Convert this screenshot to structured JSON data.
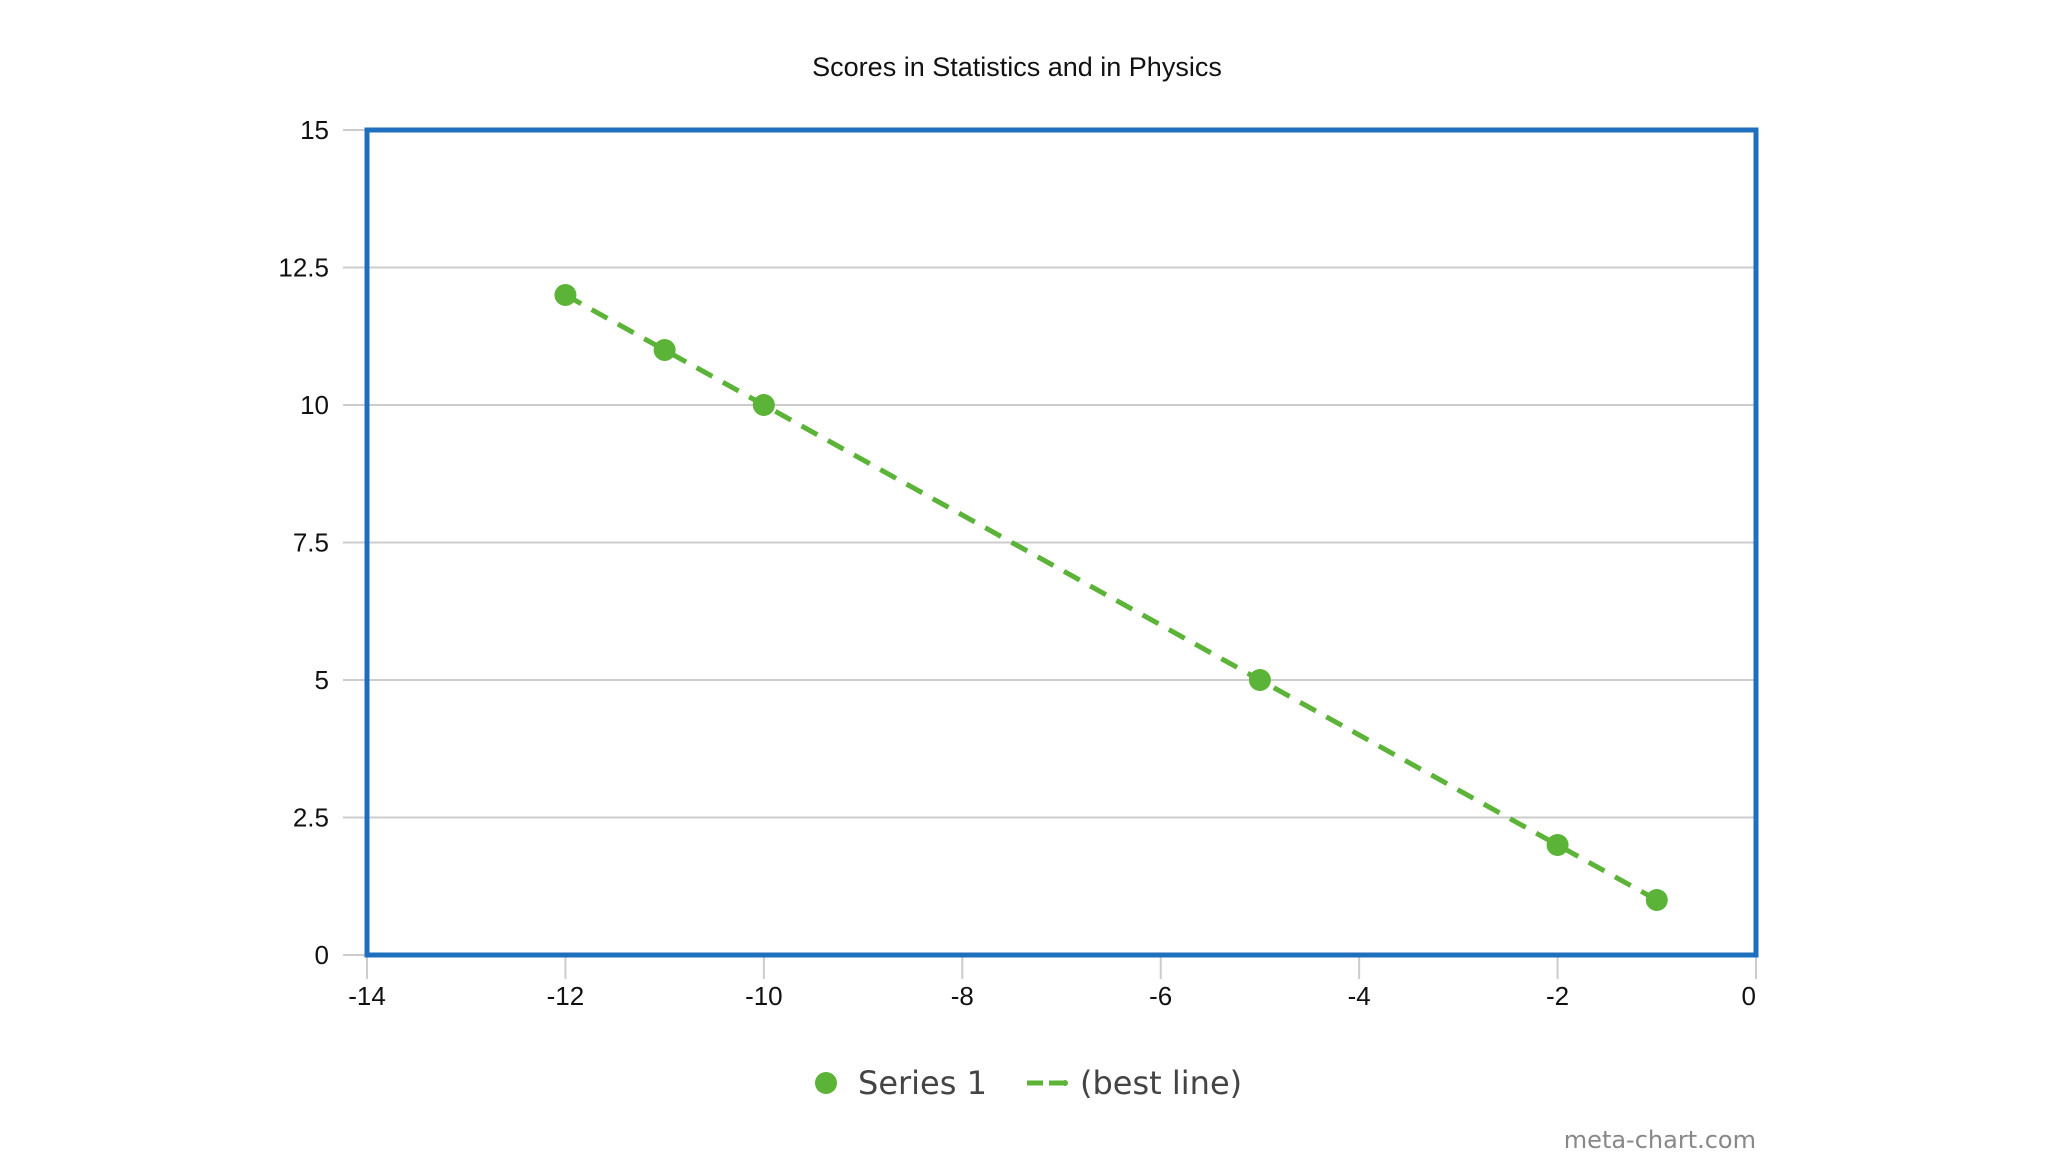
{
  "chart_data": {
    "type": "scatter",
    "title": "Scores in Statistics and in Physics",
    "xlabel": "",
    "ylabel": "",
    "xlim": [
      -14,
      0
    ],
    "ylim": [
      0,
      15
    ],
    "x_ticks": [
      "-14",
      "-12",
      "-10",
      "-8",
      "-6",
      "-4",
      "-2",
      "0"
    ],
    "y_ticks": [
      "0",
      "2.5",
      "5",
      "7.5",
      "10",
      "12.5",
      "15"
    ],
    "grid": true,
    "legend_position": "bottom",
    "series": [
      {
        "name": "Series 1",
        "color": "#5bb337",
        "points": [
          {
            "x": -12,
            "y": 12
          },
          {
            "x": -11,
            "y": 11
          },
          {
            "x": -10,
            "y": 10
          },
          {
            "x": -5,
            "y": 5
          },
          {
            "x": -2,
            "y": 2
          },
          {
            "x": -1,
            "y": 1
          }
        ]
      }
    ],
    "trend_line": {
      "name": "(best line)",
      "style": "dashed",
      "color": "#5bb337",
      "from": {
        "x": -12,
        "y": 12
      },
      "to": {
        "x": -1,
        "y": 1
      }
    },
    "colors": {
      "plot_border": "#1f6fbf",
      "gridline": "#cccccc"
    }
  },
  "credit": "meta-chart.com"
}
